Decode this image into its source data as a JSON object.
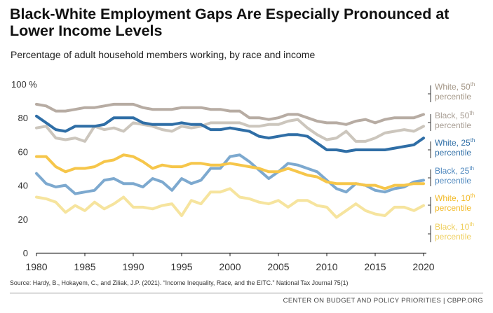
{
  "header": {
    "title": "Black-White Employment Gaps Are Especially Pronounced at Lower Income Levels",
    "subtitle": "Percentage of adult household members working, by race and income"
  },
  "footer": {
    "source": "Source: Hardy, B., Hokayem, C., and Ziliak, J.P. (2021). “Income Inequality, Race, and the EITC.” National Tax Journal 75(1)",
    "credit": "CENTER ON BUDGET AND POLICY PRIORITIES | CBPP.ORG"
  },
  "colors": {
    "white_50": "#b7aca3",
    "black_50": "#ccc6bd",
    "white_25": "#2f6ea6",
    "black_25": "#7da9cf",
    "white_10": "#f6c64a",
    "black_10": "#f6e49e",
    "axis": "#222222"
  },
  "chart_data": {
    "type": "line",
    "title": "",
    "xlabel": "",
    "ylabel": "",
    "ylim": [
      0,
      100
    ],
    "xlim": [
      1980,
      2020
    ],
    "y_ticks": [
      0,
      20,
      40,
      60,
      80,
      100
    ],
    "y_tick_labels": [
      "0",
      "20",
      "40",
      "60",
      "80",
      "100 %"
    ],
    "x_ticks": [
      1980,
      1985,
      1990,
      1995,
      2000,
      2005,
      2010,
      2015,
      2020
    ],
    "x_tick_labels": [
      "1980",
      "1985",
      "1990",
      "1995",
      "2000",
      "2005",
      "2010",
      "2015",
      "2020"
    ],
    "grid": false,
    "x": [
      1980,
      1981,
      1982,
      1983,
      1984,
      1985,
      1986,
      1987,
      1988,
      1989,
      1990,
      1991,
      1992,
      1993,
      1994,
      1995,
      1996,
      1997,
      1998,
      1999,
      2000,
      2001,
      2002,
      2003,
      2004,
      2005,
      2006,
      2007,
      2008,
      2009,
      2010,
      2011,
      2012,
      2013,
      2014,
      2015,
      2016,
      2017,
      2018,
      2019,
      2020
    ],
    "series": [
      {
        "name": "White, 50th percentile",
        "color_key": "white_50",
        "values": [
          88,
          87,
          84,
          84,
          85,
          86,
          86,
          87,
          88,
          88,
          88,
          86,
          85,
          85,
          85,
          86,
          86,
          86,
          85,
          85,
          84,
          84,
          80,
          80,
          79,
          80,
          82,
          82,
          80,
          78,
          77,
          77,
          76,
          78,
          79,
          77,
          79,
          80,
          80,
          80,
          82
        ]
      },
      {
        "name": "Black, 50th percentile",
        "color_key": "black_50",
        "values": [
          74,
          75,
          68,
          67,
          68,
          66,
          75,
          73,
          74,
          72,
          77,
          76,
          75,
          73,
          72,
          75,
          74,
          75,
          77,
          77,
          77,
          77,
          75,
          75,
          76,
          76,
          78,
          79,
          74,
          70,
          67,
          68,
          72,
          66,
          66,
          68,
          71,
          72,
          73,
          72,
          75
        ]
      },
      {
        "name": "White, 25th percentile",
        "color_key": "white_25",
        "values": [
          81,
          77,
          73,
          72,
          75,
          75,
          75,
          76,
          80,
          80,
          80,
          77,
          76,
          76,
          76,
          77,
          76,
          76,
          73,
          73,
          74,
          73,
          72,
          69,
          68,
          69,
          70,
          70,
          69,
          65,
          61,
          61,
          60,
          61,
          61,
          61,
          61,
          62,
          63,
          64,
          68
        ]
      },
      {
        "name": "Black, 25th percentile",
        "color_key": "black_25",
        "values": [
          47,
          41,
          39,
          40,
          35,
          36,
          37,
          43,
          44,
          41,
          41,
          39,
          44,
          42,
          37,
          44,
          41,
          43,
          50,
          50,
          57,
          58,
          54,
          49,
          44,
          48,
          53,
          52,
          50,
          48,
          43,
          38,
          36,
          41,
          40,
          37,
          36,
          38,
          39,
          42,
          43
        ]
      },
      {
        "name": "White, 10th percentile",
        "color_key": "white_10",
        "values": [
          57,
          57,
          51,
          48,
          50,
          50,
          51,
          54,
          55,
          58,
          57,
          54,
          50,
          52,
          51,
          51,
          53,
          53,
          52,
          52,
          53,
          52,
          51,
          50,
          48,
          48,
          50,
          48,
          46,
          45,
          42,
          41,
          41,
          41,
          40,
          40,
          38,
          40,
          40,
          41,
          41
        ]
      },
      {
        "name": "Black, 10th percentile",
        "color_key": "black_10",
        "values": [
          33,
          32,
          30,
          24,
          28,
          25,
          30,
          26,
          29,
          33,
          27,
          27,
          26,
          28,
          29,
          22,
          31,
          29,
          36,
          36,
          38,
          33,
          32,
          30,
          29,
          31,
          27,
          31,
          31,
          28,
          27,
          21,
          25,
          29,
          25,
          23,
          22,
          27,
          27,
          25,
          28
        ]
      }
    ],
    "legend": [
      {
        "label_line1": "White, 50",
        "label_sup": "th",
        "label_line2": "percentile",
        "color_key": "white_50"
      },
      {
        "label_line1": "Black, 50",
        "label_sup": "th",
        "label_line2": "percentile",
        "color_key": "black_50"
      },
      {
        "label_line1": "White, 25",
        "label_sup": "th",
        "label_line2": "percentile",
        "color_key": "white_25"
      },
      {
        "label_line1": "Black, 25",
        "label_sup": "th",
        "label_line2": "percentile",
        "color_key": "black_25"
      },
      {
        "label_line1": "White, 10",
        "label_sup": "th",
        "label_line2": "percentile",
        "color_key": "white_10"
      },
      {
        "label_line1": "Black, 10",
        "label_sup": "th",
        "label_line2": "percentile",
        "color_key": "black_10"
      }
    ],
    "legend_placement": "right"
  }
}
